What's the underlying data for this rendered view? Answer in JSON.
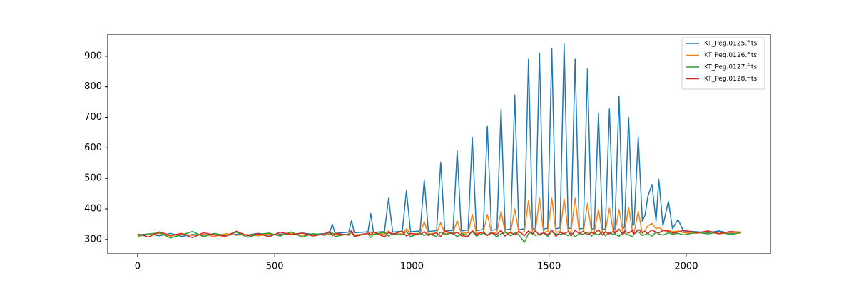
{
  "chart_data": {
    "type": "line",
    "x": [
      0,
      40,
      80,
      120,
      160,
      200,
      240,
      280,
      320,
      360,
      400,
      440,
      480,
      520,
      560,
      600,
      640,
      680,
      700,
      710,
      720,
      770,
      780,
      790,
      840,
      850,
      860,
      900,
      915,
      930,
      965,
      980,
      995,
      1030,
      1045,
      1060,
      1090,
      1105,
      1120,
      1150,
      1165,
      1180,
      1205,
      1220,
      1235,
      1260,
      1275,
      1290,
      1310,
      1325,
      1340,
      1360,
      1375,
      1390,
      1410,
      1425,
      1440,
      1450,
      1465,
      1480,
      1495,
      1510,
      1525,
      1540,
      1555,
      1570,
      1580,
      1595,
      1610,
      1625,
      1640,
      1655,
      1665,
      1680,
      1695,
      1705,
      1720,
      1735,
      1740,
      1755,
      1770,
      1775,
      1790,
      1805,
      1810,
      1825,
      1840,
      1850,
      1860,
      1875,
      1890,
      1900,
      1915,
      1935,
      1950,
      1970,
      1990,
      2040,
      2080,
      2120,
      2160,
      2200
    ],
    "series": [
      {
        "name": "KT_Peg.0125.fits",
        "color": "#1f77b4",
        "values": [
          315,
          318,
          312,
          320,
          310,
          316,
          314,
          319,
          313,
          317,
          315,
          320,
          314,
          318,
          316,
          321,
          317,
          319,
          322,
          350,
          320,
          324,
          362,
          322,
          325,
          385,
          323,
          326,
          435,
          324,
          327,
          460,
          325,
          328,
          495,
          326,
          329,
          553,
          327,
          330,
          590,
          328,
          331,
          635,
          329,
          332,
          670,
          330,
          333,
          727,
          331,
          334,
          773,
          332,
          335,
          890,
          333,
          336,
          910,
          334,
          337,
          925,
          335,
          338,
          940,
          336,
          337,
          890,
          335,
          336,
          858,
          334,
          335,
          713,
          333,
          334,
          727,
          333,
          335,
          770,
          336,
          340,
          700,
          345,
          350,
          636,
          360,
          380,
          440,
          480,
          360,
          497,
          345,
          425,
          335,
          365,
          328,
          325,
          322,
          328,
          320,
          324
        ]
      },
      {
        "name": "KT_Peg.0126.fits",
        "color": "#ff7f0e",
        "values": [
          312,
          316,
          320,
          311,
          318,
          313,
          317,
          310,
          319,
          314,
          316,
          312,
          318,
          315,
          320,
          313,
          317,
          315,
          318,
          320,
          316,
          317,
          322,
          315,
          319,
          325,
          316,
          318,
          328,
          317,
          319,
          335,
          318,
          320,
          358,
          318,
          321,
          355,
          319,
          322,
          362,
          320,
          322,
          382,
          320,
          323,
          382,
          321,
          324,
          392,
          322,
          324,
          400,
          322,
          325,
          428,
          323,
          325,
          435,
          323,
          326,
          435,
          324,
          326,
          433,
          324,
          325,
          435,
          323,
          325,
          418,
          323,
          324,
          398,
          322,
          324,
          402,
          322,
          323,
          398,
          321,
          323,
          405,
          321,
          322,
          392,
          320,
          330,
          345,
          352,
          335,
          340,
          330,
          330,
          325,
          328,
          322,
          320,
          325,
          318,
          323,
          321
        ]
      },
      {
        "name": "KT_Peg.0127.fits",
        "color": "#2ca02c",
        "values": [
          310,
          318,
          322,
          305,
          315,
          326,
          309,
          320,
          312,
          324,
          307,
          317,
          321,
          311,
          325,
          308,
          319,
          314,
          316,
          322,
          310,
          318,
          324,
          312,
          320,
          306,
          317,
          323,
          311,
          319,
          315,
          327,
          309,
          321,
          313,
          318,
          310,
          324,
          316,
          322,
          308,
          319,
          314,
          326,
          311,
          320,
          315,
          323,
          309,
          318,
          325,
          312,
          321,
          316,
          290,
          319,
          324,
          313,
          317,
          322,
          310,
          325,
          318,
          316,
          321,
          312,
          323,
          309,
          319,
          317,
          324,
          311,
          320,
          314,
          326,
          312,
          322,
          316,
          318,
          310,
          323,
          321,
          315,
          309,
          319,
          326,
          313,
          316,
          320,
          311,
          324,
          318,
          314,
          322,
          317,
          320,
          315,
          323,
          318,
          325,
          316,
          322
        ]
      },
      {
        "name": "KT_Peg.0128.fits",
        "color": "#d62728",
        "values": [
          318,
          308,
          325,
          313,
          320,
          306,
          322,
          315,
          310,
          327,
          312,
          319,
          309,
          324,
          316,
          321,
          311,
          318,
          326,
          312,
          320,
          314,
          330,
          309,
          321,
          316,
          325,
          308,
          323,
          317,
          327,
          311,
          320,
          315,
          326,
          313,
          322,
          309,
          328,
          318,
          324,
          312,
          310,
          329,
          316,
          325,
          313,
          321,
          317,
          330,
          311,
          323,
          315,
          327,
          312,
          328,
          318,
          329,
          314,
          322,
          316,
          331,
          310,
          324,
          318,
          326,
          311,
          330,
          319,
          327,
          316,
          323,
          319,
          332,
          314,
          325,
          318,
          328,
          320,
          334,
          316,
          328,
          321,
          330,
          318,
          333,
          322,
          326,
          320,
          331,
          324,
          322,
          329,
          327,
          321,
          324,
          330,
          322,
          328,
          319,
          326,
          324
        ]
      }
    ],
    "xlim": [
      -109,
      2307
    ],
    "ylim": [
      253,
      972
    ],
    "xticks": [
      0,
      500,
      1000,
      1500,
      2000
    ],
    "yticks": [
      300,
      400,
      500,
      600,
      700,
      800,
      900
    ],
    "legend": "upper-right"
  }
}
